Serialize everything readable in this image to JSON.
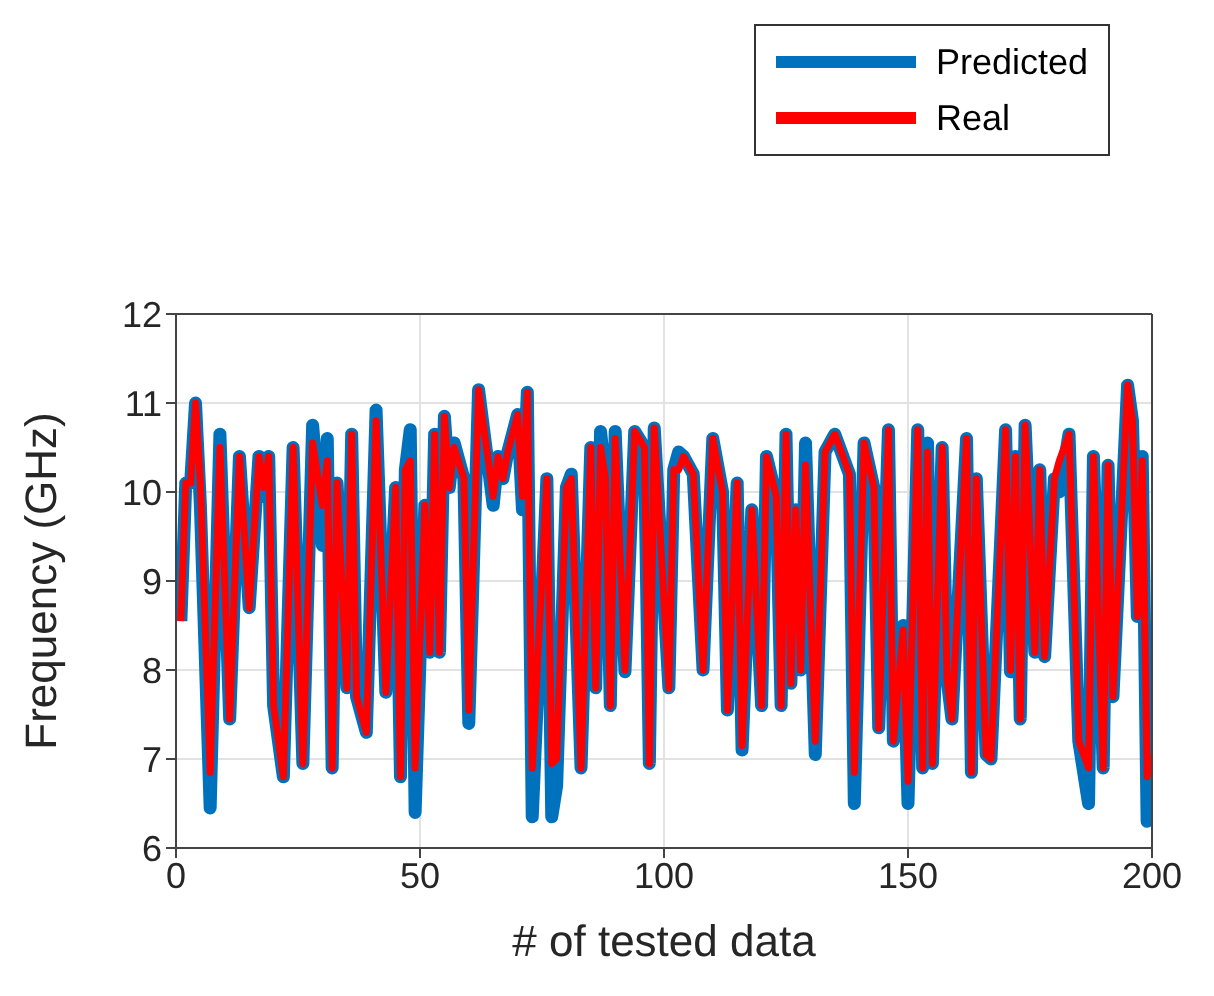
{
  "chart_data": {
    "type": "line",
    "xlabel": "# of tested data",
    "ylabel": "Frequency (GHz)",
    "x": [
      1,
      2,
      3,
      4,
      5,
      7,
      9,
      11,
      13,
      15,
      17,
      18,
      19,
      20,
      22,
      24,
      26,
      28,
      30,
      31,
      32,
      33,
      35,
      36,
      37,
      39,
      41,
      43,
      45,
      46,
      47,
      48,
      49,
      51,
      52,
      53,
      54,
      55,
      56,
      57,
      59,
      60,
      62,
      65,
      66,
      67,
      68,
      70,
      71,
      72,
      73,
      76,
      77,
      78,
      80,
      81,
      83,
      85,
      86,
      87,
      88,
      89,
      90,
      92,
      94,
      96,
      97,
      98,
      101,
      102,
      103,
      104,
      106,
      108,
      110,
      112,
      113,
      115,
      116,
      118,
      120,
      121,
      123,
      124,
      125,
      126,
      127,
      128,
      129,
      131,
      133,
      135,
      138,
      139,
      141,
      143,
      144,
      146,
      147,
      149,
      150,
      152,
      153,
      154,
      155,
      157,
      158,
      159,
      162,
      163,
      164,
      166,
      167,
      170,
      171,
      172,
      173,
      174,
      176,
      177,
      178,
      180,
      181,
      183,
      185,
      187,
      188,
      190,
      191,
      192,
      195,
      196,
      197,
      198,
      199,
      200
    ],
    "series": [
      {
        "name": "Predicted",
        "color": "#0072bd",
        "values": [
          8.55,
          10.1,
          10.1,
          11.0,
          9.85,
          6.45,
          10.65,
          7.45,
          10.4,
          8.7,
          10.4,
          9.95,
          10.4,
          7.6,
          6.8,
          10.5,
          6.95,
          10.75,
          9.4,
          10.6,
          6.9,
          10.1,
          7.8,
          10.65,
          7.7,
          7.3,
          10.92,
          7.75,
          10.05,
          6.8,
          10.25,
          10.7,
          6.4,
          9.85,
          8.2,
          10.65,
          8.2,
          10.85,
          10.05,
          10.55,
          10.15,
          7.4,
          11.15,
          9.85,
          10.4,
          10.15,
          10.45,
          10.87,
          9.8,
          11.12,
          6.35,
          10.15,
          6.35,
          6.7,
          10.05,
          10.2,
          6.9,
          10.5,
          7.8,
          10.68,
          10.15,
          7.6,
          10.68,
          7.98,
          10.68,
          10.5,
          6.95,
          10.72,
          7.8,
          10.25,
          10.45,
          10.4,
          10.2,
          8.0,
          10.6,
          10.0,
          7.55,
          10.1,
          7.1,
          9.8,
          7.6,
          10.4,
          9.95,
          7.6,
          10.65,
          7.85,
          9.8,
          8.0,
          10.55,
          7.05,
          10.45,
          10.65,
          10.2,
          6.5,
          10.55,
          10.05,
          7.35,
          10.7,
          7.2,
          8.5,
          6.5,
          10.7,
          6.9,
          10.55,
          6.95,
          10.5,
          7.9,
          7.45,
          10.6,
          6.85,
          10.15,
          7.05,
          7.0,
          10.7,
          7.98,
          10.4,
          7.45,
          10.75,
          8.2,
          10.25,
          8.15,
          10.15,
          10.0,
          10.65,
          7.2,
          6.5,
          10.4,
          6.9,
          10.3,
          7.7,
          11.2,
          10.8,
          8.6,
          10.4,
          6.3,
          7.05
        ]
      },
      {
        "name": "Real",
        "color": "#ff0000",
        "values": [
          8.55,
          10.1,
          10.1,
          11.0,
          10.1,
          6.85,
          10.5,
          7.45,
          10.4,
          8.7,
          10.4,
          10.05,
          10.4,
          7.6,
          6.8,
          10.5,
          6.95,
          10.55,
          9.85,
          10.35,
          6.9,
          10.1,
          7.8,
          10.65,
          7.7,
          7.3,
          10.8,
          7.75,
          10.05,
          6.8,
          10.25,
          10.35,
          6.9,
          9.85,
          8.2,
          10.65,
          8.2,
          10.85,
          10.05,
          10.5,
          10.15,
          7.55,
          11.15,
          9.95,
          10.4,
          10.15,
          10.45,
          10.87,
          9.95,
          11.12,
          6.9,
          10.15,
          6.95,
          7.0,
          10.05,
          10.15,
          6.9,
          10.5,
          7.8,
          10.5,
          10.15,
          7.6,
          10.6,
          8.0,
          10.68,
          10.5,
          6.95,
          10.72,
          7.8,
          10.25,
          10.25,
          10.4,
          10.2,
          8.0,
          10.6,
          10.0,
          7.55,
          10.1,
          7.15,
          9.8,
          7.6,
          10.4,
          9.95,
          7.6,
          10.65,
          7.85,
          9.8,
          8.0,
          10.3,
          7.2,
          10.45,
          10.65,
          10.2,
          6.85,
          10.55,
          10.05,
          7.35,
          10.7,
          7.2,
          8.45,
          6.75,
          10.7,
          6.9,
          10.45,
          6.95,
          10.5,
          7.9,
          7.45,
          10.6,
          6.85,
          10.15,
          7.05,
          7.0,
          10.7,
          8.0,
          10.4,
          7.45,
          10.75,
          8.2,
          10.25,
          8.15,
          10.15,
          10.35,
          10.65,
          7.2,
          6.9,
          10.4,
          6.9,
          10.3,
          7.7,
          11.2,
          10.8,
          8.6,
          10.35,
          6.8,
          7.05
        ]
      }
    ],
    "xlim": [
      0,
      200
    ],
    "xticks": [
      0,
      50,
      100,
      150,
      200
    ],
    "ylim": [
      6,
      12
    ],
    "yticks": [
      6,
      7,
      8,
      9,
      10,
      11,
      12
    ],
    "grid": true,
    "legend": "top right"
  }
}
